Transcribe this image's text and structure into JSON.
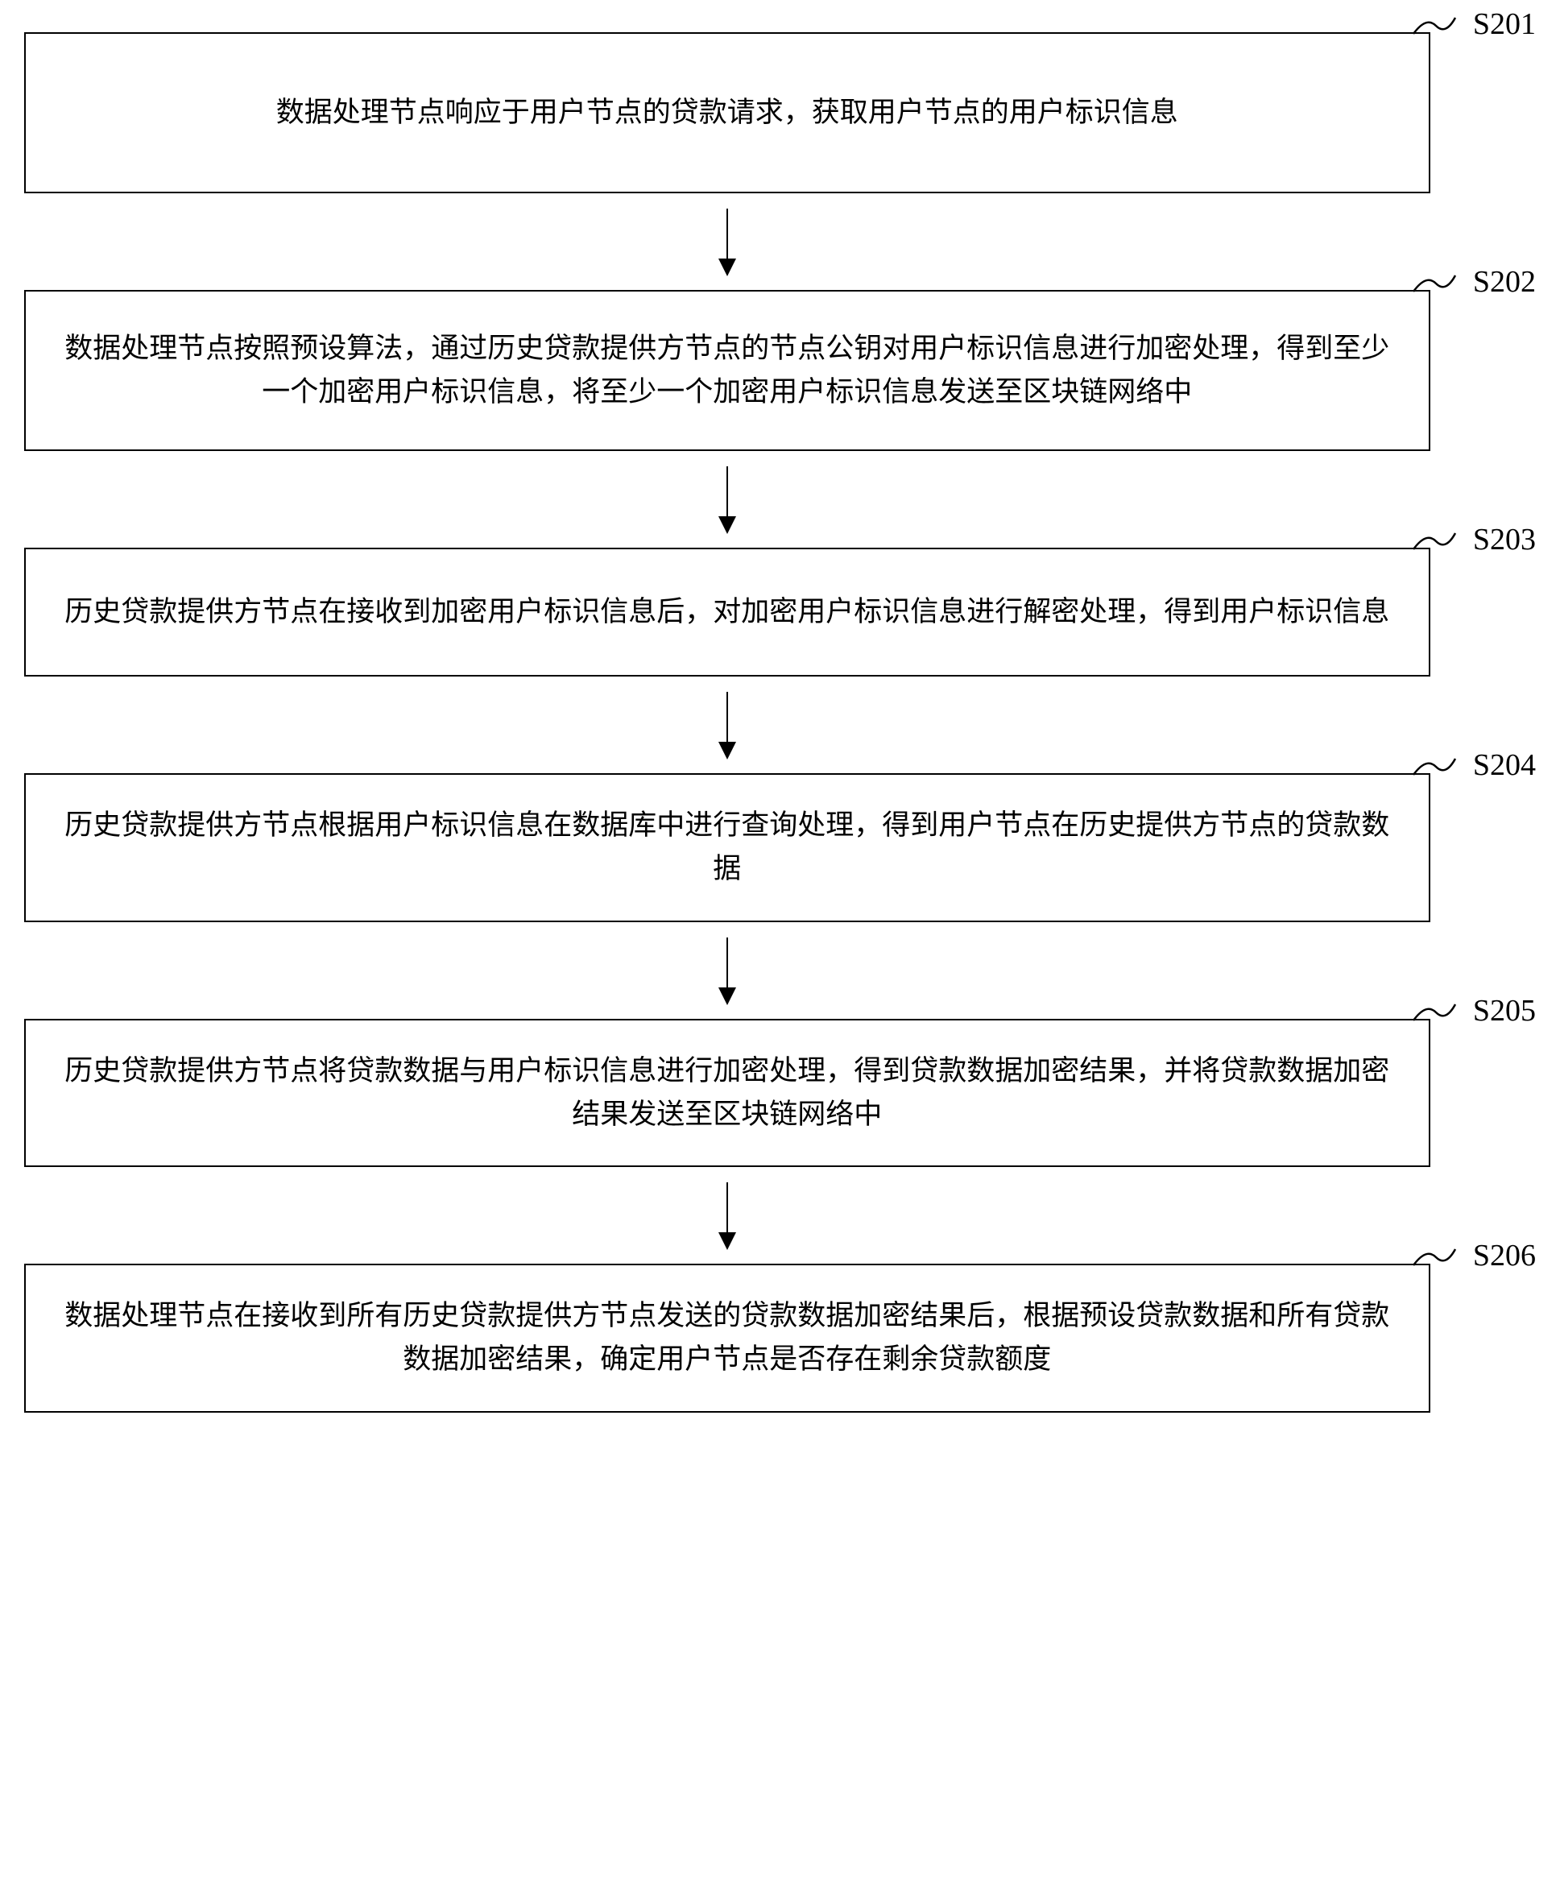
{
  "flowchart": {
    "type": "flowchart",
    "direction": "top-down",
    "box_border_color": "#000000",
    "box_border_width": 2.5,
    "box_background": "#ffffff",
    "text_color": "#000000",
    "font_family": "SimSun",
    "font_size_box": 35,
    "font_size_label": 38,
    "line_height": 1.55,
    "arrow_line_width": 2.5,
    "arrow_head_size": 22,
    "connector_height": 120,
    "box_width_percent": 93,
    "steps": [
      {
        "id": "S201",
        "label": "S201",
        "text": "数据处理节点响应于用户节点的贷款请求，获取用户节点的用户标识信息",
        "height_class": "tall1"
      },
      {
        "id": "S202",
        "label": "S202",
        "text": "数据处理节点按照预设算法，通过历史贷款提供方节点的节点公钥对用户标识信息进行加密处理，得到至少一个加密用户标识信息，将至少一个加密用户标识信息发送至区块链网络中",
        "height_class": "tall1"
      },
      {
        "id": "S203",
        "label": "S203",
        "text": "历史贷款提供方节点在接收到加密用户标识信息后，对加密用户标识信息进行解密处理，得到用户标识信息",
        "height_class": "tall2"
      },
      {
        "id": "S204",
        "label": "S204",
        "text": "历史贷款提供方节点根据用户标识信息在数据库中进行查询处理，得到用户节点在历史提供方节点的贷款数据",
        "height_class": "tall2"
      },
      {
        "id": "S205",
        "label": "S205",
        "text": "历史贷款提供方节点将贷款数据与用户标识信息进行加密处理，得到贷款数据加密结果，并将贷款数据加密结果发送至区块链网络中",
        "height_class": "tall2"
      },
      {
        "id": "S206",
        "label": "S206",
        "text": "数据处理节点在接收到所有历史贷款提供方节点发送的贷款数据加密结果后，根据预设贷款数据和所有贷款数据加密结果，确定用户节点是否存在剩余贷款额度",
        "height_class": "tall2"
      }
    ],
    "edges": [
      {
        "from": "S201",
        "to": "S202"
      },
      {
        "from": "S202",
        "to": "S203"
      },
      {
        "from": "S203",
        "to": "S204"
      },
      {
        "from": "S204",
        "to": "S205"
      },
      {
        "from": "S205",
        "to": "S206"
      }
    ]
  }
}
